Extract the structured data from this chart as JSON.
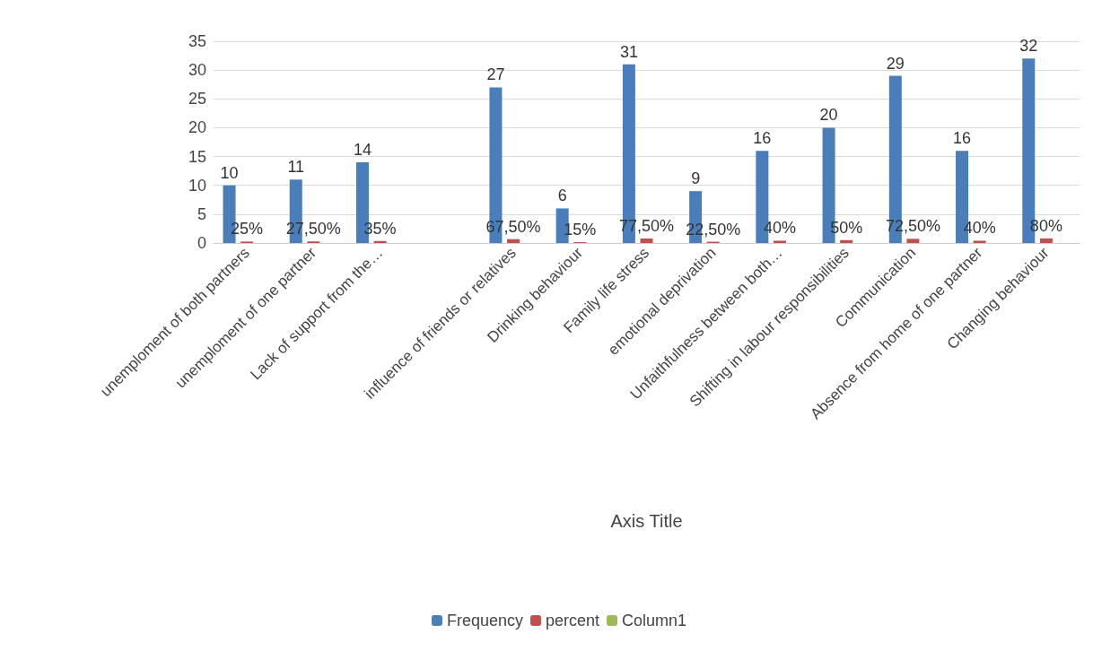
{
  "chart_data": {
    "type": "bar",
    "xlabel": "Axis Title",
    "categories": [
      "unemploment of both partners",
      "unemploment of one partner",
      "Lack of support from the…",
      null,
      "influence of friends or relatives",
      "Drinking behaviour",
      "Family life stress",
      "emotional deprivation",
      "Unfaithfulness between both…",
      "Shifting in labour responsibilities",
      "Communication",
      "Absence from home of one partner",
      "Changing behaviour"
    ],
    "series": [
      {
        "name": "Frequency",
        "color": "#4a7ebb",
        "values": [
          10,
          11,
          14,
          null,
          27,
          6,
          31,
          9,
          16,
          20,
          29,
          16,
          32
        ],
        "value_labels": [
          "10",
          "11",
          "14",
          null,
          "27",
          "6",
          "31",
          "9",
          "16",
          "20",
          "29",
          "16",
          "32"
        ]
      },
      {
        "name": "percent",
        "color": "#c0504d",
        "values": [
          0.25,
          0.275,
          0.35,
          null,
          0.675,
          0.15,
          0.775,
          0.225,
          0.4,
          0.5,
          0.725,
          0.4,
          0.8
        ],
        "value_labels": [
          "25%",
          "27,50%",
          "35%",
          null,
          "67,50%",
          "15%",
          "77,50%",
          "22,50%",
          "40%",
          "50%",
          "72,50%",
          "40%",
          "80%"
        ]
      },
      {
        "name": "Column1",
        "color": "#9bbb59",
        "values": [
          null,
          null,
          null,
          null,
          null,
          null,
          null,
          null,
          null,
          null,
          null,
          null,
          null
        ]
      }
    ],
    "ylim": [
      0,
      35
    ],
    "yticks": [
      0,
      5,
      10,
      15,
      20,
      25,
      30,
      35
    ],
    "grid": "y",
    "legend": "bottom"
  }
}
